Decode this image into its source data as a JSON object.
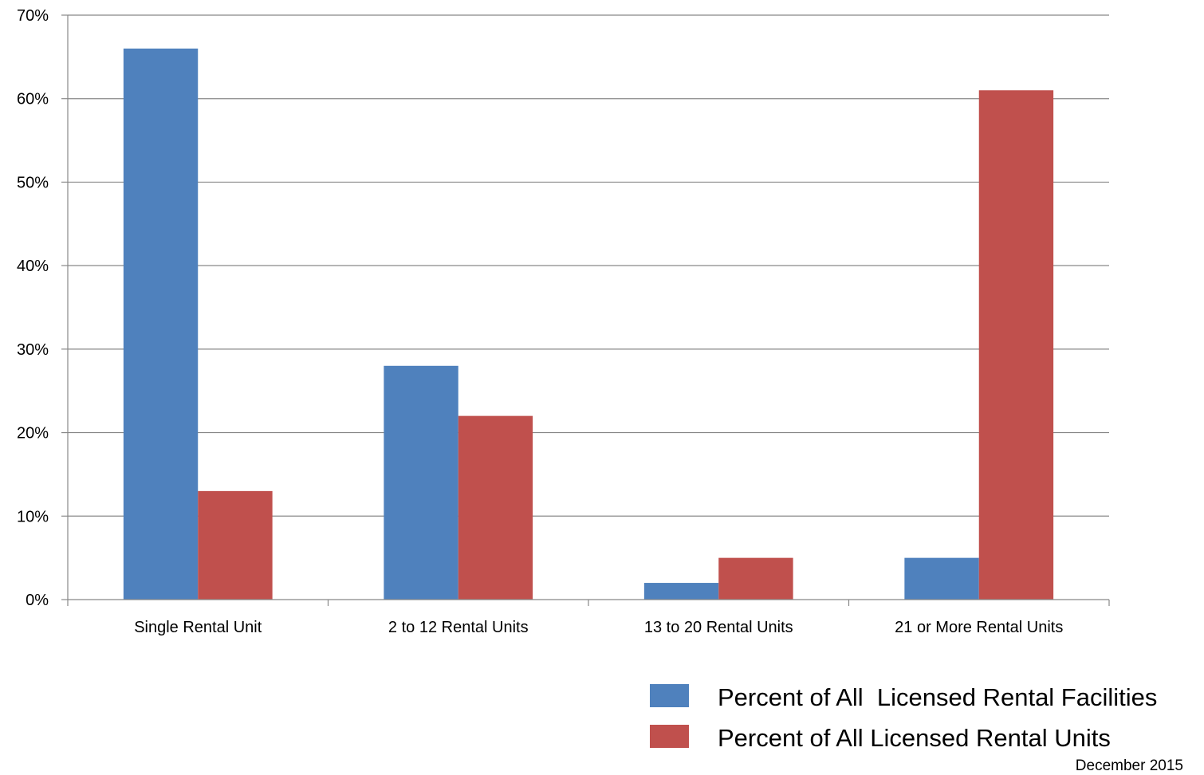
{
  "chart_data": {
    "type": "bar",
    "categories": [
      "Single Rental Unit",
      "2 to 12 Rental Units",
      "13 to 20 Rental Units",
      "21 or More Rental Units"
    ],
    "series": [
      {
        "name": "Percent of All  Licensed Rental Facilities",
        "values": [
          66,
          28,
          2,
          5
        ],
        "color": "#4F81BD"
      },
      {
        "name": "Percent of All Licensed Rental Units",
        "values": [
          13,
          22,
          5,
          61
        ],
        "color": "#C0504D"
      }
    ],
    "y_ticks": [
      "0%",
      "10%",
      "20%",
      "30%",
      "40%",
      "50%",
      "60%",
      "70%"
    ],
    "ylim": [
      0,
      70
    ],
    "grid": true,
    "legend_position": "bottom-right",
    "footnote": "December 2015",
    "colors": {
      "grid": "#888888",
      "axis": "#888888"
    }
  }
}
